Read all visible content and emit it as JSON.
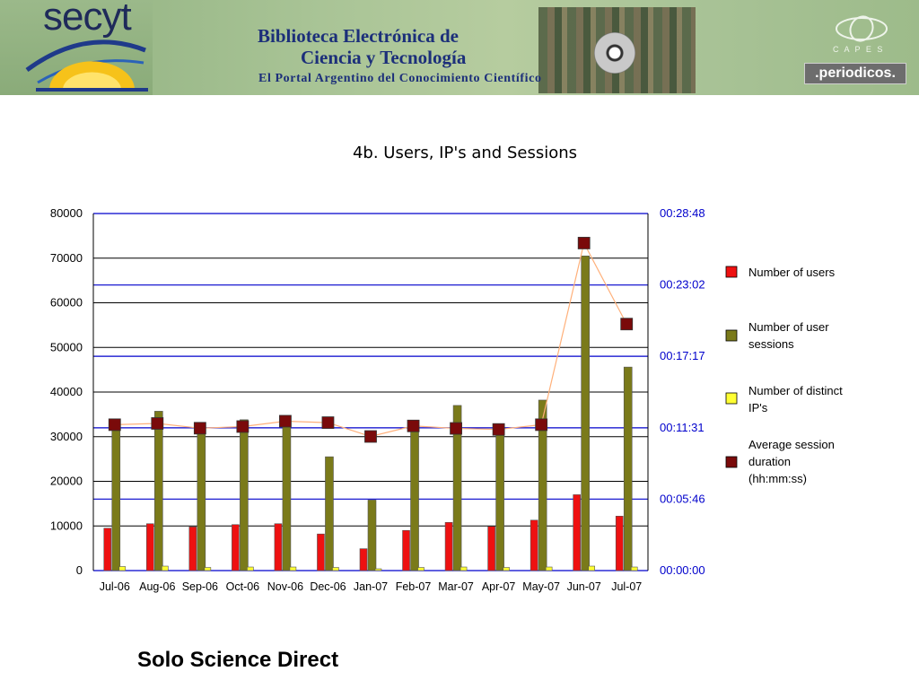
{
  "banner": {
    "logo_text": "secyt",
    "title_line1": "Biblioteca Electrónica de",
    "title_line2": "Ciencia y Tecnología",
    "subtitle": "El Portal Argentino del Conocimiento Científico",
    "capes_label": "C A P E S",
    "periodicos_label": ".periodicos.",
    "colors": {
      "banner_green": "#a9c496",
      "title_blue": "#1c2f7a"
    }
  },
  "caption": "Solo Science Direct",
  "chart_data": {
    "type": "bar",
    "title": "4b. Users, IP's and Sessions",
    "categories": [
      "Jul-06",
      "Aug-06",
      "Sep-06",
      "Oct-06",
      "Nov-06",
      "Dec-06",
      "Jan-07",
      "Feb-07",
      "Mar-07",
      "Apr-07",
      "May-07",
      "Jun-07",
      "Jul-07"
    ],
    "left_axis": {
      "ylim": [
        0,
        80000
      ],
      "ticks": [
        "0",
        "10000",
        "20000",
        "30000",
        "40000",
        "50000",
        "60000",
        "70000",
        "80000"
      ],
      "grid": true
    },
    "right_axis": {
      "ylim_seconds": [
        0,
        1728
      ],
      "ticks": [
        "00:00:00",
        "00:05:46",
        "00:11:31",
        "00:17:17",
        "00:23:02",
        "00:28:48"
      ],
      "color": "#0000cc"
    },
    "series": [
      {
        "name": "Number of users",
        "type": "bar",
        "axis": "left",
        "color": "#ee1111",
        "values": [
          9500,
          10500,
          9800,
          10300,
          10500,
          8200,
          4900,
          9000,
          10800,
          9900,
          11300,
          17000,
          12200
        ]
      },
      {
        "name": "Number of user sessions",
        "type": "bar",
        "axis": "left",
        "color": "#7a7a1a",
        "values": [
          32500,
          35700,
          31000,
          33800,
          34700,
          25500,
          15800,
          32000,
          37000,
          31600,
          38200,
          70500,
          45600
        ]
      },
      {
        "name": "Number of distinct IP's",
        "type": "bar",
        "axis": "left",
        "color": "#ffff33",
        "values": [
          900,
          1000,
          700,
          800,
          800,
          700,
          400,
          700,
          800,
          700,
          800,
          1000,
          800
        ]
      },
      {
        "name": "Average session duration (hh:mm:ss)",
        "type": "line-markers",
        "axis": "right",
        "color": "#7a0a0a",
        "line_color": "#ffb07a",
        "values_hhmmss": [
          "00:11:46",
          "00:11:52",
          "00:11:29",
          "00:11:37",
          "00:12:03",
          "00:11:56",
          "00:10:49",
          "00:11:40",
          "00:11:28",
          "00:11:23",
          "00:11:46",
          "00:26:25",
          "00:19:53"
        ]
      }
    ],
    "legend": {
      "position": "right",
      "items": [
        {
          "label_lines": [
            "Number of users"
          ],
          "color": "#ee1111"
        },
        {
          "label_lines": [
            "Number of user",
            "sessions"
          ],
          "color": "#7a7a1a"
        },
        {
          "label_lines": [
            "Number of distinct",
            "IP's"
          ],
          "color": "#ffff33"
        },
        {
          "label_lines": [
            "Average session",
            "duration",
            "(hh:mm:ss)"
          ],
          "color": "#7a0a0a"
        }
      ]
    }
  }
}
